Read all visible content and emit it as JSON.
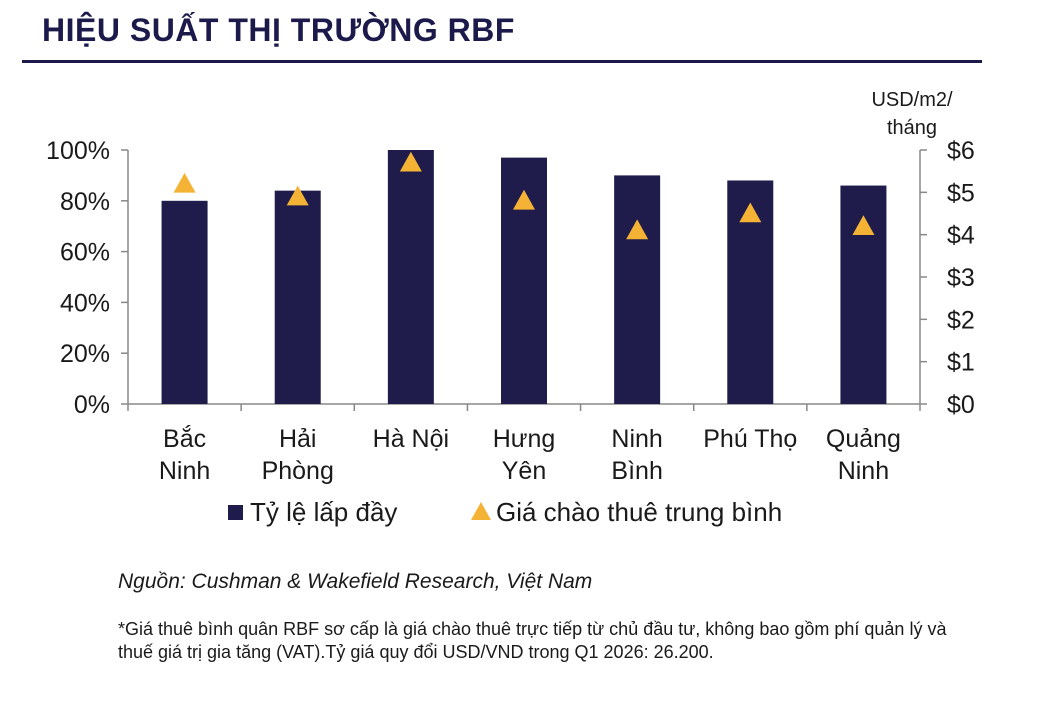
{
  "title": "HIỆU SUẤT THỊ TRƯỜNG RBF",
  "source": "Nguồn: Cushman & Wakefield Research, Việt Nam",
  "note": "*Giá thuê bình quân RBF sơ cấp là giá chào thuê trực tiếp từ chủ đầu tư, không bao gồm phí quản lý và thuế giá trị gia tăng (VAT).Tỷ giá quy đổi USD/VND trong Q1 2026: 26.200.",
  "colors": {
    "bar": "#1f1c4c",
    "marker": "#f5b335",
    "axis": "#888888",
    "title": "#1c1a4a"
  },
  "chart_data": {
    "type": "bar",
    "categories": [
      [
        "Bắc",
        "Ninh"
      ],
      [
        "Hải",
        "Phòng"
      ],
      [
        "Hà Nội"
      ],
      [
        "Hưng",
        "Yên"
      ],
      [
        "Ninh",
        "Bình"
      ],
      [
        "Phú Thọ"
      ],
      [
        "Quảng",
        "Ninh"
      ]
    ],
    "series": [
      {
        "name": "Tỷ lệ lấp đầy",
        "type": "bar",
        "axis": "left",
        "values": [
          80,
          84,
          100,
          97,
          90,
          88,
          86
        ]
      },
      {
        "name": "Giá chào thuê trung bình",
        "type": "scatter",
        "marker": "triangle",
        "axis": "right",
        "values": [
          5.2,
          4.9,
          5.7,
          4.8,
          4.1,
          4.5,
          4.2
        ]
      }
    ],
    "y_left": {
      "ylim": [
        0,
        100
      ],
      "ticks": [
        "0%",
        "20%",
        "40%",
        "60%",
        "80%",
        "100%"
      ]
    },
    "y_right": {
      "ylim": [
        0,
        6
      ],
      "ticks": [
        "$0",
        "$1",
        "$2",
        "$3",
        "$4",
        "$5",
        "$6"
      ],
      "unit_label": [
        "USD/m2/",
        "tháng"
      ]
    },
    "grid": false,
    "legend": "bottom"
  }
}
